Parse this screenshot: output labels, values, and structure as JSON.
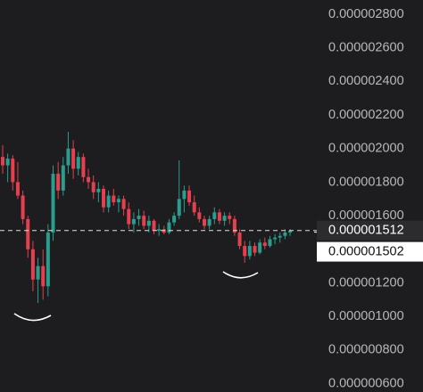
{
  "chart_data": {
    "type": "candlestick",
    "ylim": [
      5.5e-07,
      2.885e-06
    ],
    "yticks": [
      {
        "value": 2.8e-06,
        "label": "0.000002800"
      },
      {
        "value": 2.6e-06,
        "label": "0.000002600"
      },
      {
        "value": 2.4e-06,
        "label": "0.000002400"
      },
      {
        "value": 2.2e-06,
        "label": "0.000002200"
      },
      {
        "value": 2e-06,
        "label": "0.000002000"
      },
      {
        "value": 1.8e-06,
        "label": "0.000001800"
      },
      {
        "value": 1.6e-06,
        "label": "0.000001600"
      },
      {
        "value": 1.2e-06,
        "label": "0.000001200"
      },
      {
        "value": 1e-06,
        "label": "0.000001000"
      },
      {
        "value": 8e-07,
        "label": "0.000000800"
      },
      {
        "value": 6e-07,
        "label": "0.000000600"
      }
    ],
    "up_color": "#2a9d8f",
    "down_color": "#e5404f",
    "open": [
      1.95e-06,
      1.9e-06,
      1.94e-06,
      1.8e-06,
      1.72e-06,
      1.58e-06,
      1.4e-06,
      1.22e-06,
      1.3e-06,
      1.18e-06,
      1.5e-06,
      1.85e-06,
      1.75e-06,
      1.9e-06,
      2e-06,
      1.88e-06,
      1.95e-06,
      1.83e-06,
      1.8e-06,
      1.74e-06,
      1.76e-06,
      1.65e-06,
      1.72e-06,
      1.68e-06,
      1.7e-06,
      1.64e-06,
      1.55e-06,
      1.58e-06,
      1.6e-06,
      1.54e-06,
      1.57e-06,
      1.51e-06,
      1.52e-06,
      1.5e-06,
      1.56e-06,
      1.6e-06,
      1.7e-06,
      1.75e-06,
      1.68e-06,
      1.62e-06,
      1.58e-06,
      1.54e-06,
      1.58e-06,
      1.62e-06,
      1.57e-06,
      1.6e-06,
      1.58e-06,
      1.5e-06,
      1.42e-06,
      1.36e-06,
      1.42e-06,
      1.38e-06,
      1.44e-06,
      1.42e-06,
      1.46e-06,
      1.47e-06,
      1.48e-06,
      1.5e-06
    ],
    "high": [
      2.02e-06,
      1.97e-06,
      1.96e-06,
      1.92e-06,
      1.75e-06,
      1.6e-06,
      1.45e-06,
      1.35e-06,
      1.4e-06,
      1.55e-06,
      1.9e-06,
      1.92e-06,
      1.95e-06,
      2.1e-06,
      2.05e-06,
      1.98e-06,
      1.97e-06,
      1.88e-06,
      1.84e-06,
      1.8e-06,
      1.78e-06,
      1.75e-06,
      1.76e-06,
      1.72e-06,
      1.72e-06,
      1.68e-06,
      1.62e-06,
      1.64e-06,
      1.63e-06,
      1.6e-06,
      1.58e-06,
      1.55e-06,
      1.54e-06,
      1.58e-06,
      1.62e-06,
      1.93e-06,
      1.78e-06,
      1.78e-06,
      1.72e-06,
      1.65e-06,
      1.6e-06,
      1.6e-06,
      1.65e-06,
      1.64e-06,
      1.62e-06,
      1.62e-06,
      1.6e-06,
      1.52e-06,
      1.45e-06,
      1.45e-06,
      1.44e-06,
      1.46e-06,
      1.47e-06,
      1.48e-06,
      1.49e-06,
      1.5e-06,
      1.52e-06,
      1.52e-06
    ],
    "low": [
      1.85e-06,
      1.8e-06,
      1.75e-06,
      1.7e-06,
      1.55e-06,
      1.35e-06,
      1.15e-06,
      1.08e-06,
      1.1e-06,
      1.12e-06,
      1.45e-06,
      1.7e-06,
      1.72e-06,
      1.85e-06,
      1.82e-06,
      1.84e-06,
      1.8e-06,
      1.76e-06,
      1.7e-06,
      1.68e-06,
      1.62e-06,
      1.62e-06,
      1.66e-06,
      1.62e-06,
      1.6e-06,
      1.52e-06,
      1.5e-06,
      1.54e-06,
      1.52e-06,
      1.5e-06,
      1.49e-06,
      1.48e-06,
      1.49e-06,
      1.49e-06,
      1.54e-06,
      1.58e-06,
      1.62e-06,
      1.66e-06,
      1.6e-06,
      1.56e-06,
      1.52e-06,
      1.52e-06,
      1.55e-06,
      1.55e-06,
      1.54e-06,
      1.55e-06,
      1.48e-06,
      1.4e-06,
      1.32e-06,
      1.34e-06,
      1.36e-06,
      1.37e-06,
      1.4e-06,
      1.41e-06,
      1.43e-06,
      1.44e-06,
      1.46e-06,
      1.48e-06
    ],
    "close": [
      1.9e-06,
      1.94e-06,
      1.8e-06,
      1.72e-06,
      1.58e-06,
      1.4e-06,
      1.22e-06,
      1.3e-06,
      1.18e-06,
      1.5e-06,
      1.85e-06,
      1.75e-06,
      1.9e-06,
      2e-06,
      1.88e-06,
      1.95e-06,
      1.83e-06,
      1.8e-06,
      1.74e-06,
      1.76e-06,
      1.65e-06,
      1.72e-06,
      1.68e-06,
      1.7e-06,
      1.64e-06,
      1.55e-06,
      1.58e-06,
      1.6e-06,
      1.54e-06,
      1.57e-06,
      1.51e-06,
      1.52e-06,
      1.5e-06,
      1.56e-06,
      1.6e-06,
      1.7e-06,
      1.75e-06,
      1.68e-06,
      1.62e-06,
      1.58e-06,
      1.54e-06,
      1.58e-06,
      1.62e-06,
      1.57e-06,
      1.6e-06,
      1.58e-06,
      1.5e-06,
      1.42e-06,
      1.36e-06,
      1.42e-06,
      1.38e-06,
      1.44e-06,
      1.42e-06,
      1.46e-06,
      1.47e-06,
      1.48e-06,
      1.5e-06,
      1.51e-06
    ],
    "price_labels": [
      {
        "value": 1.512e-06,
        "label": "0.000001512"
      },
      {
        "value": 1.502e-06,
        "label": "0.000001502"
      }
    ]
  }
}
